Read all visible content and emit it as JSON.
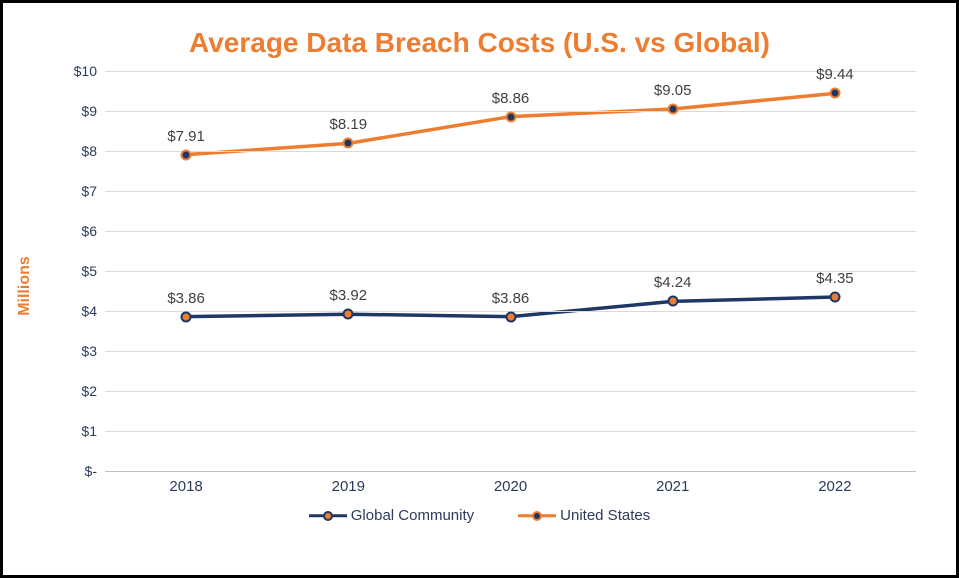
{
  "chart": {
    "type": "line",
    "title": "Average Data Breach Costs (U.S. vs Global)",
    "title_color": "#ed7d31",
    "title_fontsize": 28,
    "y_axis_label": "Millions",
    "y_axis_label_color": "#ed7d31",
    "y_axis_label_fontsize": 16,
    "tick_color": "#2c3a5c",
    "tick_fontsize": 14,
    "data_label_color": "#404040",
    "data_label_fontsize": 15,
    "background_color": "#ffffff",
    "grid_color": "#d9d9d9",
    "baseline_color": "#bfbfbf",
    "ylim": [
      0,
      10
    ],
    "ytick_step": 1,
    "ytick_prefix": "$",
    "ytick_zero_label": "$-",
    "categories": [
      "2018",
      "2019",
      "2020",
      "2021",
      "2022"
    ],
    "x_positions_pct": [
      10,
      30,
      50,
      70,
      90
    ],
    "line_width": 3.5,
    "marker_size": 11,
    "marker_border_width": 2.5,
    "series": [
      {
        "name": "Global Community",
        "values": [
          3.86,
          3.92,
          3.86,
          4.24,
          4.35
        ],
        "labels": [
          "$3.86",
          "$3.92",
          "$3.86",
          "$4.24",
          "$4.35"
        ],
        "line_color": "#1f3763",
        "marker_fill": "#ed7d31",
        "marker_border": "#1f3763"
      },
      {
        "name": "United States",
        "values": [
          7.91,
          8.19,
          8.86,
          9.05,
          9.44
        ],
        "labels": [
          "$7.91",
          "$8.19",
          "$8.86",
          "$9.05",
          "$9.44"
        ],
        "line_color": "#ed7d31",
        "marker_fill": "#1f3763",
        "marker_border": "#ed7d31"
      }
    ],
    "legend": {
      "position": "bottom-center",
      "text_color": "#2c3a5c",
      "fontsize": 15
    }
  }
}
